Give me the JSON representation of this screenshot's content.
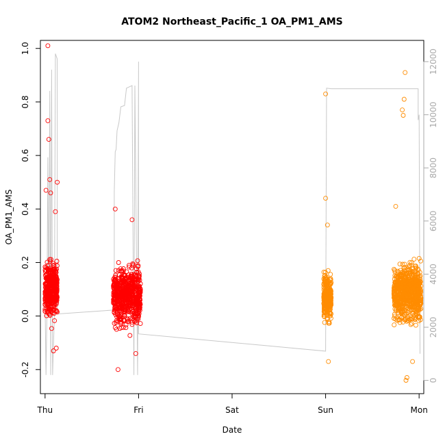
{
  "chart_data": {
    "type": "scatter",
    "title": "ATOM2 Northeast_Pacific_1 OA_PM1_AMS",
    "xlabel": "Date",
    "ylabel": "OA_PM1_AMS",
    "x_ticks": [
      "Thu",
      "Fri",
      "Sat",
      "Sun",
      "Mon"
    ],
    "x_range_days": [
      -0.05,
      4.05
    ],
    "y_left_ticks": [
      "-0.2",
      "0.0",
      "0.2",
      "0.4",
      "0.6",
      "0.8",
      "1.0"
    ],
    "y_left_values": [
      -0.2,
      0.0,
      0.2,
      0.4,
      0.6,
      0.8,
      1.0
    ],
    "y_left_range": [
      -0.29,
      1.03
    ],
    "y_right_ticks": [
      "0",
      "2000",
      "4000",
      "6000",
      "8000",
      "10000",
      "12000"
    ],
    "y_right_values": [
      0,
      2000,
      4000,
      6000,
      8000,
      10000,
      12000
    ],
    "y_right_range": [
      -500,
      12800
    ],
    "grid": false,
    "legend": "none",
    "series": [
      {
        "color": "#ff0000",
        "marker": "open-circle",
        "clusters": [
          {
            "x_start": 0.0,
            "x_end": 0.13,
            "center": 0.1,
            "spread": 0.09,
            "count": 420
          },
          {
            "x_start": 0.73,
            "x_end": 1.02,
            "center": 0.08,
            "spread": 0.09,
            "count": 700
          }
        ],
        "outliers": [
          {
            "x": 0.03,
            "y": 1.01
          },
          {
            "x": 0.03,
            "y": 0.73
          },
          {
            "x": 0.04,
            "y": 0.66
          },
          {
            "x": 0.05,
            "y": 0.51
          },
          {
            "x": 0.01,
            "y": 0.47
          },
          {
            "x": 0.06,
            "y": 0.46
          },
          {
            "x": 0.13,
            "y": 0.5
          },
          {
            "x": 0.11,
            "y": 0.39
          },
          {
            "x": 0.09,
            "y": -0.13
          },
          {
            "x": 0.12,
            "y": -0.12
          },
          {
            "x": 0.75,
            "y": 0.4
          },
          {
            "x": 0.78,
            "y": -0.2
          },
          {
            "x": 0.93,
            "y": 0.36
          },
          {
            "x": 0.97,
            "y": -0.14
          }
        ]
      },
      {
        "color": "#ff8c00",
        "marker": "open-circle",
        "clusters": [
          {
            "x_start": 2.98,
            "x_end": 3.06,
            "center": 0.07,
            "spread": 0.08,
            "count": 260
          },
          {
            "x_start": 3.73,
            "x_end": 4.02,
            "center": 0.09,
            "spread": 0.09,
            "count": 760
          }
        ],
        "outliers": [
          {
            "x": 3.0,
            "y": 0.83
          },
          {
            "x": 3.0,
            "y": 0.44
          },
          {
            "x": 3.02,
            "y": 0.34
          },
          {
            "x": 3.03,
            "y": -0.17
          },
          {
            "x": 3.85,
            "y": 0.91
          },
          {
            "x": 3.84,
            "y": 0.81
          },
          {
            "x": 3.82,
            "y": 0.77
          },
          {
            "x": 3.83,
            "y": 0.75
          },
          {
            "x": 3.75,
            "y": 0.41
          },
          {
            "x": 3.87,
            "y": -0.23
          },
          {
            "x": 3.86,
            "y": -0.24
          },
          {
            "x": 3.93,
            "y": -0.17
          }
        ]
      },
      {
        "color": "#c8c8c8",
        "marker": "line",
        "axis": "right",
        "path": [
          [
            0.0,
            3000
          ],
          [
            0.01,
            200
          ],
          [
            0.02,
            2600
          ],
          [
            0.03,
            8400
          ],
          [
            0.04,
            2400
          ],
          [
            0.05,
            10900
          ],
          [
            0.06,
            200
          ],
          [
            0.07,
            11700
          ],
          [
            0.08,
            200
          ],
          [
            0.1,
            2500
          ],
          [
            0.11,
            12300
          ],
          [
            0.13,
            12100
          ],
          [
            0.13,
            2500
          ],
          [
            0.74,
            2650
          ],
          [
            0.74,
            7100
          ],
          [
            0.75,
            8600
          ],
          [
            0.76,
            8700
          ],
          [
            0.77,
            9400
          ],
          [
            0.79,
            9700
          ],
          [
            0.81,
            10300
          ],
          [
            0.85,
            10350
          ],
          [
            0.87,
            11000
          ],
          [
            0.93,
            11100
          ],
          [
            0.95,
            200
          ],
          [
            0.96,
            11100
          ],
          [
            0.99,
            200
          ],
          [
            1.0,
            12000
          ],
          [
            1.0,
            1750
          ],
          [
            3.0,
            1100
          ],
          [
            3.01,
            11000
          ],
          [
            3.06,
            10980
          ],
          [
            3.99,
            10980
          ],
          [
            3.99,
            9800
          ],
          [
            4.0,
            10000
          ],
          [
            4.01,
            1000
          ]
        ]
      }
    ]
  }
}
